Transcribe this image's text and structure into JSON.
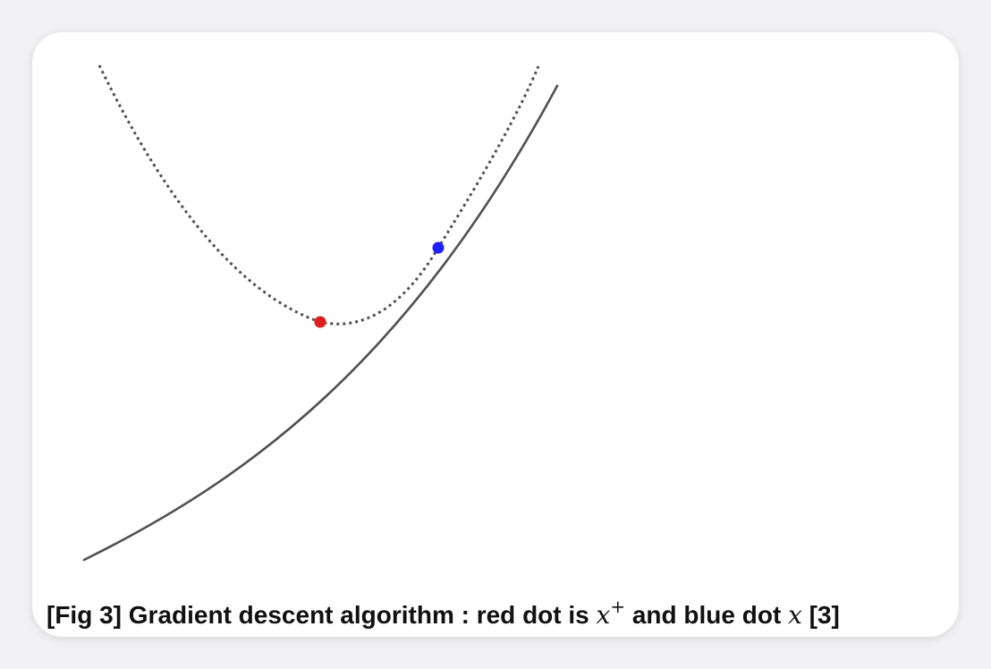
{
  "caption": {
    "prefix": "[Fig 3] Gradient descent algorithm : red dot is",
    "x_plus_base": "x",
    "x_plus_sup": "+",
    "middle": "and blue dot",
    "x": "x",
    "suffix": "[3]"
  },
  "colors": {
    "curve": "#505050",
    "approx": "#505050",
    "red_dot": "#e01e1e",
    "blue_dot": "#1f1fff"
  }
}
